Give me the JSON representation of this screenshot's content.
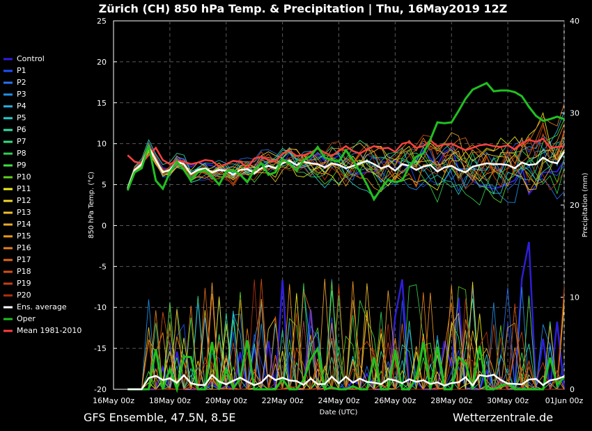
{
  "chart_data": {
    "type": "line",
    "title": "Zürich  (CH)  850 hPa Temp. & Precipitation | Thu, 16May2019 12Z",
    "xlabel": "Date (UTC)",
    "ylabel": "850 hPa Temp. (°C)",
    "y2label": "Precipitation (mm)",
    "ylim": [
      -20,
      25
    ],
    "y2lim": [
      0,
      40
    ],
    "yticks": [
      "25",
      "20",
      "15",
      "10",
      "5",
      "0",
      "-5",
      "-10",
      "-15",
      "-20"
    ],
    "y2ticks": [
      "40",
      "30",
      "20",
      "10",
      "0"
    ],
    "xticks": [
      "16May 00z",
      "18May 00z",
      "20May 00z",
      "22May 00z",
      "24May 00z",
      "26May 00z",
      "28May 00z",
      "30May 00z",
      "01Jun 00z"
    ],
    "x_hours_from_16May00z": [
      12,
      18,
      24,
      30,
      36,
      42,
      48,
      54,
      60,
      66,
      72,
      78,
      84,
      90,
      96,
      102,
      108,
      114,
      120,
      126,
      132,
      138,
      144,
      150,
      156,
      162,
      168,
      174,
      180,
      186,
      192,
      198,
      204,
      210,
      216,
      222,
      228,
      234,
      240,
      246,
      252,
      258,
      264,
      270,
      276,
      282,
      288,
      294,
      300,
      306,
      312,
      318,
      324,
      330,
      336,
      342,
      348,
      354,
      360,
      366,
      372,
      378,
      384
    ],
    "grid": true,
    "legend_position": "left",
    "series": [
      {
        "name": "Control",
        "color": "#3020e0"
      },
      {
        "name": "P1",
        "color": "#2050ff"
      },
      {
        "name": "P2",
        "color": "#2a72f0"
      },
      {
        "name": "P3",
        "color": "#2090e8"
      },
      {
        "name": "P4",
        "color": "#30b0e0"
      },
      {
        "name": "P5",
        "color": "#28d0d0"
      },
      {
        "name": "P6",
        "color": "#30e0a8"
      },
      {
        "name": "P7",
        "color": "#30e080"
      },
      {
        "name": "P8",
        "color": "#30d050"
      },
      {
        "name": "P9",
        "color": "#40e040"
      },
      {
        "name": "P10",
        "color": "#60d020"
      },
      {
        "name": "P11",
        "color": "#f0f020"
      },
      {
        "name": "P12",
        "color": "#f0d830"
      },
      {
        "name": "P13",
        "color": "#f0c030"
      },
      {
        "name": "P14",
        "color": "#f0a830"
      },
      {
        "name": "P15",
        "color": "#f09820"
      },
      {
        "name": "P16",
        "color": "#e88020"
      },
      {
        "name": "P17",
        "color": "#e06818"
      },
      {
        "name": "P18",
        "color": "#d85010"
      },
      {
        "name": "P19",
        "color": "#c84010"
      },
      {
        "name": "P20",
        "color": "#b03010"
      },
      {
        "name": "Ens. average",
        "color": "#ffffff",
        "temp": [
          4.5,
          6.8,
          7.5,
          9.6,
          8.0,
          6.5,
          6.8,
          7.8,
          7.5,
          6.3,
          6.8,
          7.0,
          6.5,
          6.8,
          6.7,
          6.2,
          6.8,
          6.9,
          6.4,
          7.0,
          7.3,
          7.0,
          7.6,
          7.9,
          7.4,
          7.8,
          7.6,
          7.5,
          7.1,
          7.6,
          7.4,
          7.0,
          7.3,
          7.6,
          7.9,
          7.5,
          7.0,
          7.3,
          6.7,
          7.5,
          7.3,
          6.8,
          7.2,
          7.4,
          6.6,
          7.1,
          7.3,
          6.8,
          6.5,
          7.2,
          7.4,
          7.6,
          7.5,
          7.5,
          7.4,
          7.0,
          7.7,
          7.4,
          7.5,
          8.3,
          7.8,
          7.6,
          9.0
        ]
      },
      {
        "name": "Oper",
        "color": "#20c020",
        "temp": [
          4.3,
          6.5,
          7.0,
          9.8,
          5.5,
          4.5,
          6.5,
          7.8,
          6.8,
          5.5,
          6.5,
          6.8,
          6.0,
          5.0,
          6.6,
          6.8,
          6.2,
          5.3,
          6.8,
          7.6,
          6.2,
          6.5,
          8.1,
          7.6,
          6.7,
          8.0,
          8.5,
          9.6,
          8.3,
          8.0,
          7.8,
          9.2,
          8.0,
          6.6,
          5.0,
          3.2,
          4.5,
          5.6,
          5.3,
          5.5,
          7.2,
          8.4,
          8.8,
          10.5,
          12.6,
          12.5,
          12.6,
          14.0,
          15.5,
          16.6,
          17.0,
          17.4,
          16.4,
          16.5,
          16.5,
          16.3,
          15.8,
          14.5,
          13.4,
          12.8,
          13.0,
          13.3,
          13.0
        ]
      },
      {
        "name": "Mean 1981-2010",
        "color": "#ff4040",
        "temp": [
          8.6,
          7.8,
          7.6,
          8.6,
          9.5,
          8.0,
          7.5,
          7.9,
          7.8,
          7.5,
          7.7,
          8.0,
          7.9,
          7.2,
          7.5,
          7.9,
          7.8,
          7.0,
          8.2,
          8.4,
          8.0,
          7.8,
          8.8,
          9.1,
          8.5,
          8.6,
          8.9,
          9.4,
          8.9,
          8.5,
          9.1,
          9.7,
          9.1,
          8.8,
          9.3,
          9.7,
          9.4,
          9.5,
          9.0,
          10.0,
          10.2,
          9.5,
          9.7,
          10.4,
          9.7,
          9.9,
          10.0,
          9.6,
          9.2,
          9.5,
          9.8,
          9.9,
          9.7,
          9.6,
          9.8,
          9.3,
          10.0,
          10.5,
          10.2,
          10.6,
          9.5,
          9.6,
          9.7
        ]
      }
    ]
  },
  "footer": {
    "left": "GFS Ensemble, 47.5N, 8.5E",
    "right": "Wetterzentrale.de"
  }
}
